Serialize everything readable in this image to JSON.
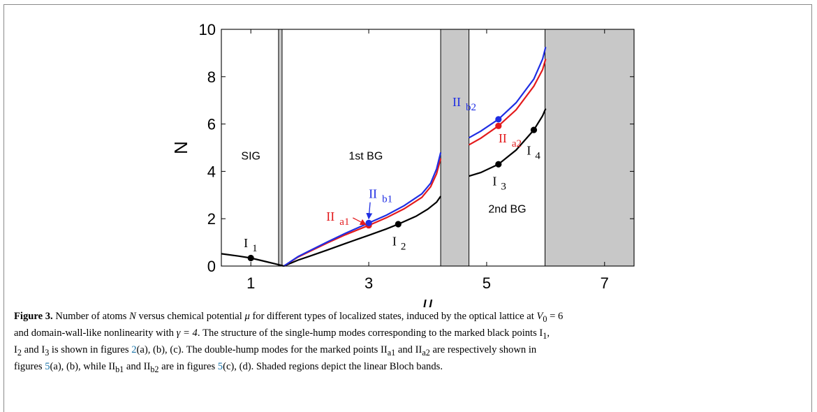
{
  "chart_data": {
    "type": "line",
    "xlabel": "μ",
    "ylabel": "N",
    "xlim": [
      0.5,
      7.5
    ],
    "ylim": [
      0,
      10
    ],
    "xticks": [
      "1",
      "3",
      "5",
      "7"
    ],
    "xtick_values": [
      1,
      3,
      5,
      7
    ],
    "yticks": [
      "0",
      "2",
      "4",
      "6",
      "8",
      "10"
    ],
    "ytick_values": [
      0,
      2,
      4,
      6,
      8,
      10
    ],
    "bands": [
      {
        "x0": 1.47,
        "x1": 1.53
      },
      {
        "x0": 4.22,
        "x1": 4.7
      },
      {
        "x0": 5.99,
        "x1": 7.5
      }
    ],
    "regions": [
      {
        "label": "SIG",
        "x": 1.0,
        "y": 4.5
      },
      {
        "label": "1st BG",
        "x": 2.95,
        "y": 4.5
      },
      {
        "label": "2nd BG",
        "x": 5.35,
        "y": 2.25
      }
    ],
    "series": [
      {
        "color": "#000000",
        "x": [
          0.5,
          0.8,
          1.0,
          1.2,
          1.4,
          1.56
        ],
        "y": [
          0.52,
          0.42,
          0.34,
          0.22,
          0.1,
          0.0
        ]
      },
      {
        "color": "#000000",
        "x": [
          1.56,
          1.8,
          2.0,
          2.3,
          2.6,
          3.0,
          3.3,
          3.5,
          3.8,
          4.0,
          4.15,
          4.22
        ],
        "y": [
          0.0,
          0.25,
          0.42,
          0.68,
          0.95,
          1.3,
          1.57,
          1.77,
          2.1,
          2.4,
          2.7,
          2.95
        ]
      },
      {
        "color": "#e31a1c",
        "x": [
          1.56,
          1.8,
          2.0,
          2.3,
          2.6,
          3.0,
          3.3,
          3.6,
          3.9,
          4.05,
          4.15,
          4.22
        ],
        "y": [
          0.0,
          0.38,
          0.62,
          0.98,
          1.32,
          1.72,
          2.04,
          2.42,
          2.9,
          3.35,
          3.9,
          4.55
        ]
      },
      {
        "color": "#1f2ee3",
        "x": [
          1.56,
          1.8,
          2.0,
          2.3,
          2.6,
          3.0,
          3.3,
          3.6,
          3.9,
          4.05,
          4.15,
          4.22
        ],
        "y": [
          0.0,
          0.4,
          0.65,
          1.02,
          1.38,
          1.82,
          2.15,
          2.55,
          3.05,
          3.5,
          4.1,
          4.8
        ]
      },
      {
        "color": "#000000",
        "x": [
          4.7,
          4.9,
          5.2,
          5.5,
          5.8,
          5.95,
          6.0
        ],
        "y": [
          3.8,
          3.95,
          4.3,
          4.9,
          5.75,
          6.35,
          6.65
        ]
      },
      {
        "color": "#e31a1c",
        "x": [
          4.7,
          4.9,
          5.2,
          5.5,
          5.8,
          5.95,
          6.0
        ],
        "y": [
          5.12,
          5.4,
          5.92,
          6.6,
          7.6,
          8.3,
          8.75
        ]
      },
      {
        "color": "#1f2ee3",
        "x": [
          4.7,
          4.9,
          5.2,
          5.5,
          5.8,
          5.95,
          6.0
        ],
        "y": [
          5.42,
          5.7,
          6.2,
          6.9,
          7.9,
          8.75,
          9.25
        ]
      }
    ],
    "points": [
      {
        "x": 1.0,
        "y": 0.34,
        "color": "#000000",
        "label": "I",
        "sub": "1",
        "label_dx": -0.12,
        "label_dy": 0.45
      },
      {
        "x": 3.5,
        "y": 1.77,
        "color": "#000000",
        "label": "I",
        "sub": "2",
        "label_dx": -0.1,
        "label_dy": -0.9
      },
      {
        "x": 5.2,
        "y": 4.3,
        "color": "#000000",
        "label": "I",
        "sub": "3",
        "label_dx": -0.1,
        "label_dy": -0.9
      },
      {
        "x": 5.8,
        "y": 5.75,
        "color": "#000000",
        "label": "I",
        "sub": "4",
        "label_dx": -0.12,
        "label_dy": -1.05
      },
      {
        "x": 3.0,
        "y": 1.72,
        "color": "#e31a1c",
        "label": "II",
        "sub": "a1",
        "label_dx": -0.72,
        "label_dy": 0.2
      },
      {
        "x": 3.0,
        "y": 1.82,
        "color": "#1f2ee3",
        "label": "II",
        "sub": "b1",
        "label_dx": 0.0,
        "label_dy": 1.05
      },
      {
        "x": 5.2,
        "y": 5.92,
        "color": "#e31a1c",
        "label": "II",
        "sub": "a2",
        "label_dx": 0.0,
        "label_dy": -0.7
      },
      {
        "x": 5.2,
        "y": 6.2,
        "color": "#1f2ee3",
        "label": "II",
        "sub": "b2",
        "label_dx": -0.78,
        "label_dy": 0.55
      }
    ]
  },
  "caption": {
    "figure_label": "Figure 3.",
    "line1_a": " Number of atoms ",
    "line1_N": "N",
    "line1_b": " versus chemical potential ",
    "line1_mu": "μ",
    "line1_c": " for different types of localized states, induced by the optical lattice at ",
    "line1_eq": "V",
    "line1_eq_sub": "0",
    "line1_eq_val": " = 6",
    "line2_a": "and domain-wall-like nonlinearity with ",
    "line2_gamma": "γ = 4",
    "line2_b": ". The structure of the single-hump modes corresponding to the marked black points I",
    "line2_sub": "1",
    "line2_c": ",",
    "line3_a": "I",
    "line3_sub2": "2",
    "line3_b": " and I",
    "line3_sub3": "3",
    "line3_c": " is shown in figures ",
    "line3_ref": "2",
    "line3_d": "(a), (b), (c). The double-hump modes for the marked points II",
    "line3_suba1": "a1",
    "line3_e": " and II",
    "line3_suba2": "a2",
    "line3_f": " are respectively shown in",
    "line4_a": "figures ",
    "line4_ref1": "5",
    "line4_b": "(a), (b), while II",
    "line4_subb1": "b1",
    "line4_c": " and II",
    "line4_subb2": "b2",
    "line4_d": " are in figures ",
    "line4_ref2": "5",
    "line4_e": "(c), (d). Shaded regions depict the linear Bloch bands."
  }
}
